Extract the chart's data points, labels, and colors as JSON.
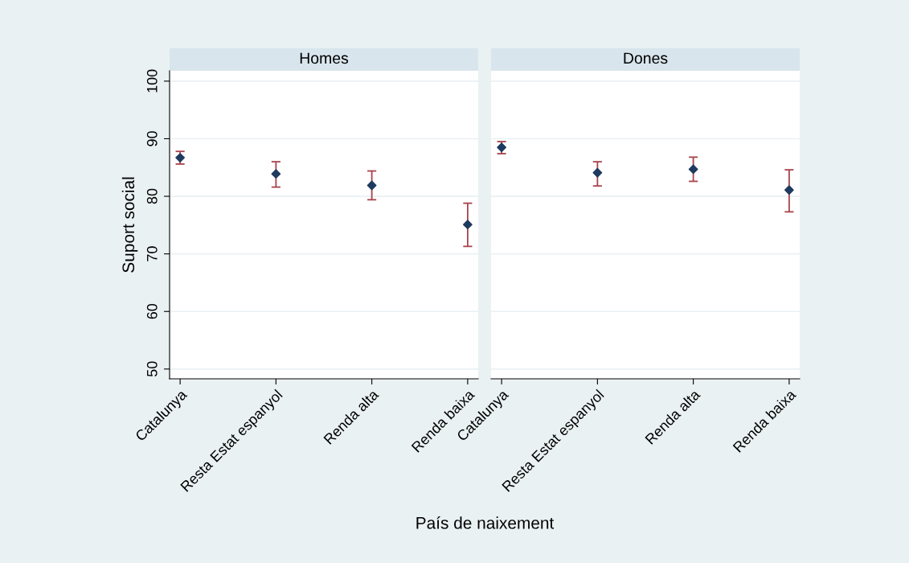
{
  "chart_data": [
    {
      "type": "scatter",
      "title": "Homes",
      "ylabel": "Suport social",
      "xlabel": "País de naixement",
      "categories": [
        "Catalunya",
        "Resta Estat espanyol",
        "Renda alta",
        "Renda baixa"
      ],
      "ylim": [
        48.3,
        101.8
      ],
      "yticks": [
        50,
        60,
        70,
        80,
        90,
        100
      ],
      "grid": "y",
      "marker": "diamond",
      "series": [
        {
          "color": "#1f3a5f",
          "values": [
            86.7,
            83.9,
            81.9,
            75.1
          ],
          "errors": [
            [
              85.6,
              87.8
            ],
            [
              81.6,
              86.0
            ],
            [
              79.4,
              84.4
            ],
            [
              71.3,
              78.8
            ]
          ]
        }
      ]
    },
    {
      "type": "scatter",
      "title": "Dones",
      "categories": [
        "Catalunya",
        "Resta Estat espanyol",
        "Renda alta",
        "Renda baixa"
      ],
      "ylim": [
        48.3,
        101.8
      ],
      "yticks": [
        50,
        60,
        70,
        80,
        90,
        100
      ],
      "grid": "y",
      "marker": "diamond",
      "tick_labels": "x",
      "series": [
        {
          "color": "#1f3a5f",
          "values": [
            88.5,
            84.1,
            84.7,
            81.1
          ],
          "errors": [
            [
              87.4,
              89.5
            ],
            [
              81.8,
              86.0
            ],
            [
              82.6,
              86.8
            ],
            [
              77.3,
              84.6
            ]
          ]
        }
      ]
    }
  ]
}
